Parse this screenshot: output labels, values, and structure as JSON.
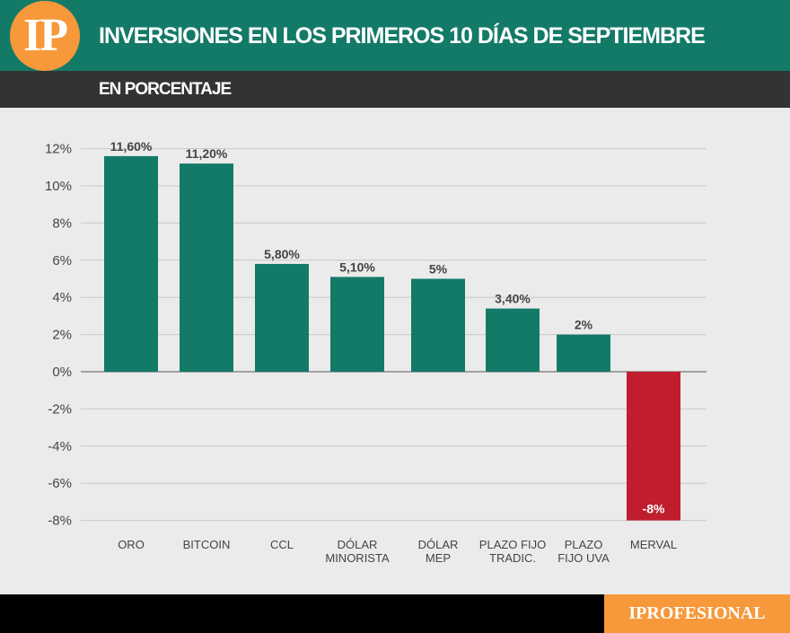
{
  "header": {
    "logo": "IP",
    "title": "INVERSIONES EN LOS PRIMEROS 10 DÍAS DE SEPTIEMBRE",
    "subtitle": "EN PORCENTAJE"
  },
  "footer": {
    "brand": "IPROFESIONAL"
  },
  "colors": {
    "positive": "#137a68",
    "negative": "#c01d2e",
    "header": "#137a68",
    "subheader": "#343233",
    "accent": "#f7983a"
  },
  "chart_data": {
    "type": "bar",
    "categories": [
      [
        "ORO"
      ],
      [
        "BITCOIN"
      ],
      [
        "CCL"
      ],
      [
        "DÓLAR",
        "MINORISTA"
      ],
      [
        "DÓLAR",
        "MEP"
      ],
      [
        "PLAZO FIJO",
        "TRADIC."
      ],
      [
        "PLAZO",
        "FIJO UVA"
      ],
      [
        "MERVAL"
      ]
    ],
    "values": [
      11.6,
      11.2,
      5.8,
      5.1,
      5,
      3.4,
      2,
      -8
    ],
    "data_labels": [
      "11,60%",
      "11,20%",
      "5,80%",
      "5,10%",
      "5%",
      "3,40%",
      "2%",
      "-8%"
    ],
    "yticks": [
      "12%",
      "10%",
      "8%",
      "6%",
      "4%",
      "2%",
      "0%",
      "-2%",
      "-4%",
      "-6%",
      "-8%"
    ],
    "ylim": [
      -8,
      12
    ],
    "grid": true
  }
}
